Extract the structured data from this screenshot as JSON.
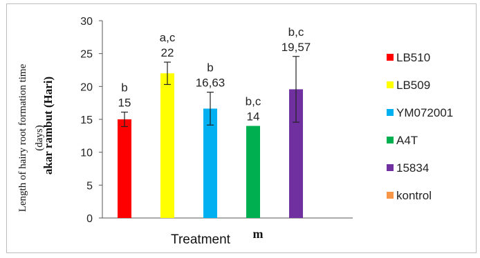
{
  "chart_data": {
    "type": "bar",
    "title": "",
    "xlabel": "Treatment",
    "ylabel_lines": [
      "Length of  hairy root formation time",
      "(days)"
    ],
    "overlay_text": {
      "ylabel_ghost": "akar rambut (Hari)",
      "xlabel_ghost": "m"
    },
    "ylim": [
      0,
      30
    ],
    "yticks": [
      0,
      5,
      10,
      15,
      20,
      25,
      30
    ],
    "grid": false,
    "legend_position": "right",
    "series": [
      {
        "name": "LB510",
        "color": "#ff0000",
        "value": 15,
        "error": 1.1,
        "label": "15",
        "letter": "b"
      },
      {
        "name": "LB509",
        "color": "#ffff00",
        "value": 22,
        "error": 1.7,
        "label": "22",
        "letter": "a,c"
      },
      {
        "name": "YM072001",
        "color": "#00b0f0",
        "value": 16.63,
        "error": 2.5,
        "label": "16,63",
        "letter": "b"
      },
      {
        "name": "A4T",
        "color": "#00b050",
        "value": 14,
        "error": null,
        "label": "14",
        "letter": "b,c"
      },
      {
        "name": "15834",
        "color": "#7030a0",
        "value": 19.57,
        "error": 5.0,
        "label": "19,57",
        "letter": "b,c"
      },
      {
        "name": "kontrol",
        "color": "#f79646",
        "value": null,
        "error": null,
        "label": "",
        "letter": ""
      }
    ]
  }
}
